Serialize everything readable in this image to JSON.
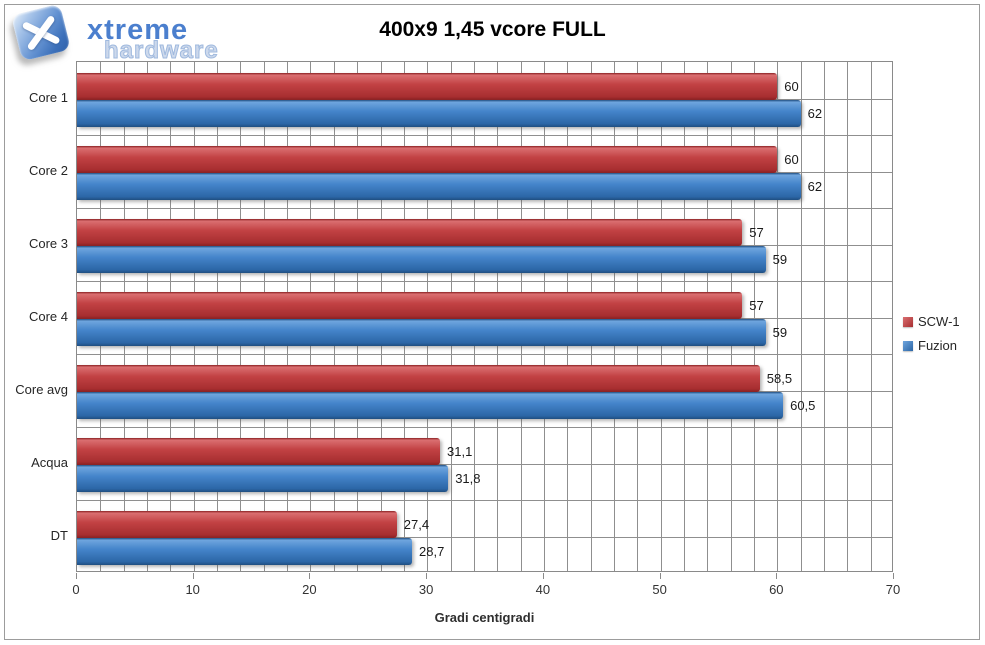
{
  "title": "400x9 1,45 vcore FULL",
  "logo": {
    "brand_top": "xtreme",
    "brand_bottom": "hardware"
  },
  "chart_data": {
    "type": "bar",
    "orientation": "horizontal",
    "title": "400x9 1,45 vcore FULL",
    "xlabel": "Gradi centigradi",
    "ylabel": "",
    "categories": [
      "Core 1",
      "Core 2",
      "Core 3",
      "Core 4",
      "Core avg",
      "Acqua",
      "DT"
    ],
    "series": [
      {
        "name": "SCW-1",
        "values": [
          60,
          60,
          57,
          57,
          58.5,
          31.1,
          27.4
        ],
        "value_labels": [
          "60",
          "60",
          "57",
          "57",
          "58,5",
          "31,1",
          "27,4"
        ],
        "color": "#c24244",
        "color_light": "#da6f71",
        "color_deep": "#a72e30",
        "color_edge": "#8a2123"
      },
      {
        "name": "Fuzion",
        "values": [
          62,
          62,
          59,
          59,
          60.5,
          31.8,
          28.7
        ],
        "value_labels": [
          "62",
          "62",
          "59",
          "59",
          "60,5",
          "31,8",
          "28,7"
        ],
        "color": "#4484ca",
        "color_light": "#6fa5de",
        "color_deep": "#2c66a6",
        "color_edge": "#1f4e80"
      }
    ],
    "xlim": [
      0,
      70
    ],
    "x_major_ticks": [
      "0",
      "10",
      "20",
      "30",
      "40",
      "50",
      "60",
      "70"
    ],
    "x_minor_step": 2,
    "grid": true,
    "gridline_color": "#8f8f8f",
    "legend_position": "right"
  }
}
